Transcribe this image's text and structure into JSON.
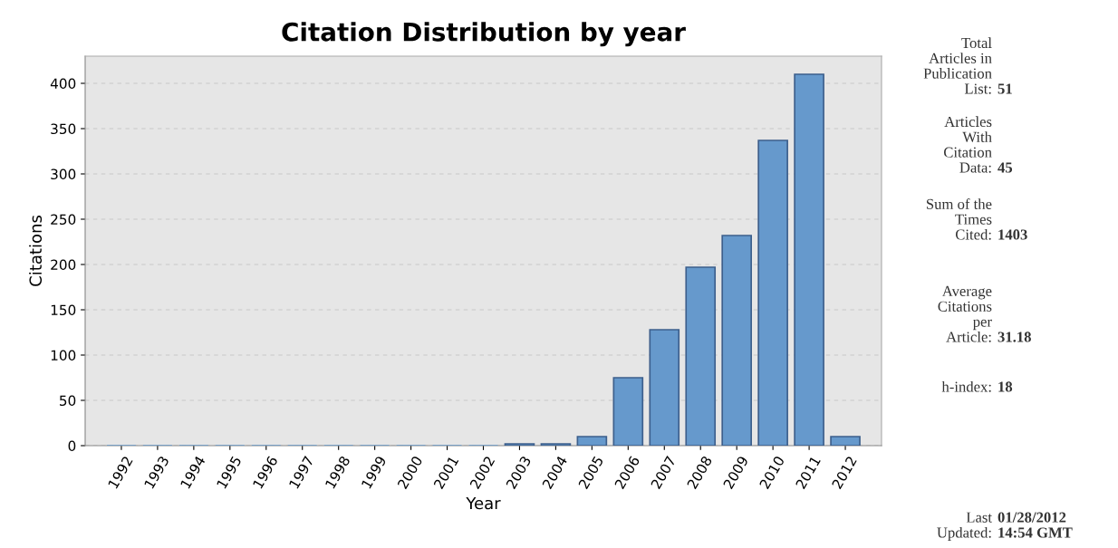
{
  "chart_data": {
    "type": "bar",
    "title": "Citation Distribution by year",
    "xlabel": "Year",
    "ylabel": "Citations",
    "categories": [
      "1992",
      "1993",
      "1994",
      "1995",
      "1996",
      "1997",
      "1998",
      "1999",
      "2000",
      "2001",
      "2002",
      "2003",
      "2004",
      "2005",
      "2006",
      "2007",
      "2008",
      "2009",
      "2010",
      "2011",
      "2012"
    ],
    "values": [
      0,
      0,
      0,
      0,
      0,
      0,
      0,
      0,
      0,
      0,
      0,
      2,
      2,
      10,
      75,
      128,
      197,
      232,
      337,
      410,
      10
    ],
    "color": "#6699cc",
    "ylim": [
      0,
      430
    ],
    "yticks": [
      0,
      50,
      100,
      150,
      200,
      250,
      300,
      350,
      400
    ],
    "grid": "y",
    "annotations": [
      "Total\nArticles in\nPublication\nList:",
      "51",
      "Articles\nWith\nCitation\nData:",
      "45",
      "Sum of the\nTimes\nCited:",
      "1403",
      "Average\nCitations\nper\nArticle:",
      "31.18",
      "h-index:",
      "18",
      "Last\nUpdated:",
      "01/28/2012\n14:54 GMT"
    ]
  }
}
